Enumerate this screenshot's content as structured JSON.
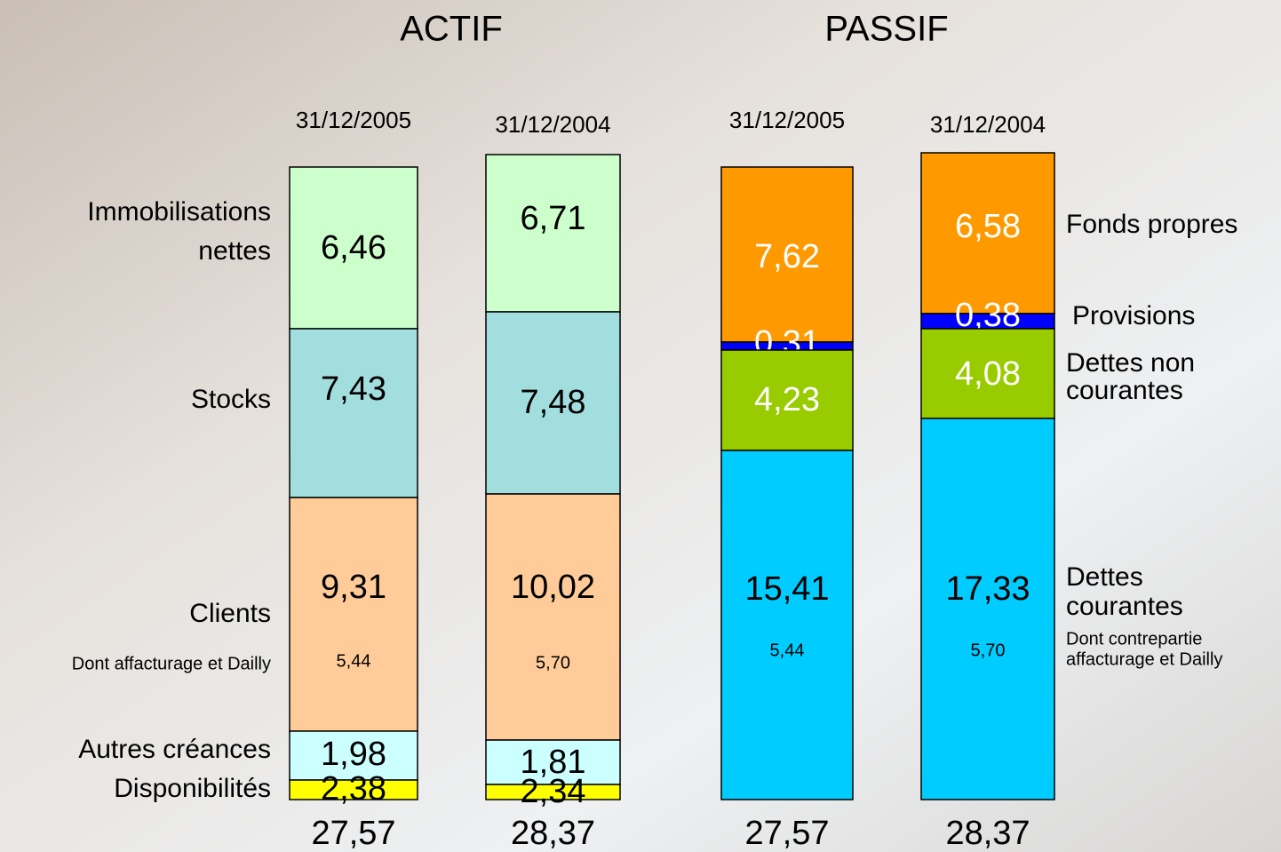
{
  "actif": {
    "title": "ACTIF",
    "labels": [
      [
        "Immobilisations",
        "nettes"
      ],
      [
        "Stocks"
      ],
      [
        "Clients"
      ],
      [
        "Dont affacturage et Dailly"
      ],
      [
        "Autres créances"
      ],
      [
        "Disponibilités"
      ]
    ]
  },
  "passif": {
    "title": "PASSIF",
    "labels": [
      [
        "Fonds propres"
      ],
      [
        "Provisions"
      ],
      [
        "Dettes non",
        "courantes"
      ],
      [
        "Dettes",
        "courantes"
      ],
      [
        "Dont contrepartie",
        "affacturage et Dailly"
      ]
    ]
  },
  "columns": [
    {
      "date": "31/12/2005",
      "total": "27,57",
      "segments": [
        {
          "value": "6,46",
          "color": "#ccffcc"
        },
        {
          "value": "7,43",
          "color": "#a3dede"
        },
        {
          "value": "9,31",
          "sub": "5,44",
          "color": "#ffcc99"
        },
        {
          "value": "1,98",
          "color": "#ccffff"
        },
        {
          "value": "2,38",
          "color": "#ffff00"
        }
      ]
    },
    {
      "date": "31/12/2004",
      "total": "28,37",
      "segments": [
        {
          "value": "6,71",
          "color": "#ccffcc"
        },
        {
          "value": "7,48",
          "color": "#a3dede"
        },
        {
          "value": "10,02",
          "sub": "5,70",
          "color": "#ffcc99"
        },
        {
          "value": "1,81",
          "color": "#ccffff"
        },
        {
          "value": "2,34",
          "color": "#ffff00"
        }
      ]
    },
    {
      "date": "31/12/2005",
      "total": "27,57",
      "segments": [
        {
          "value": "7,62",
          "color": "#ff9900"
        },
        {
          "value": "0,31",
          "color": "#0000ff"
        },
        {
          "value": "4,23",
          "color": "#99cc00"
        },
        {
          "value": "15,41",
          "sub": "5,44",
          "color": "#00ccff"
        }
      ]
    },
    {
      "date": "31/12/2004",
      "total": "28,37",
      "segments": [
        {
          "value": "6,58",
          "color": "#ff9900"
        },
        {
          "value": "0,38",
          "color": "#0000ff"
        },
        {
          "value": "4,08",
          "color": "#99cc00"
        },
        {
          "value": "17,33",
          "sub": "5,70",
          "color": "#00ccff"
        }
      ]
    }
  ]
}
